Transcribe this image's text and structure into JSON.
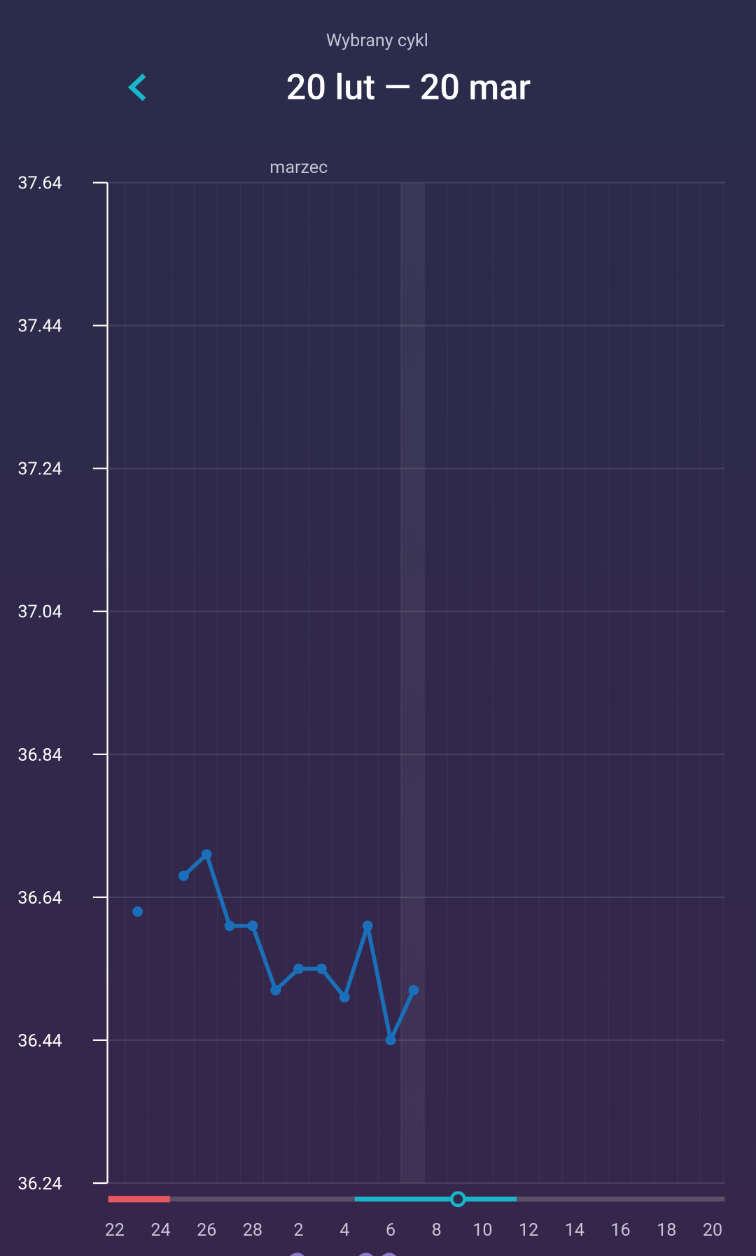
{
  "header": {
    "subtitle": "Wybrany cykl",
    "title": "20 lut — 20 mar"
  },
  "chart_data": {
    "type": "line",
    "month_label": "marzec",
    "color": "#1a6fb8",
    "categories": [
      "22",
      null,
      "24",
      null,
      "26",
      null,
      "28",
      null,
      "2",
      null,
      "4",
      null,
      "6",
      null,
      "8",
      null,
      "10",
      null,
      "12",
      null,
      "14",
      null,
      "16",
      null,
      "18",
      null,
      "20"
    ],
    "values": [
      null,
      36.62,
      null,
      36.67,
      36.7,
      36.6,
      36.6,
      36.51,
      36.54,
      36.54,
      36.5,
      36.6,
      36.44,
      36.51,
      null,
      null,
      null,
      null,
      null,
      null,
      null,
      null,
      null,
      null,
      null,
      null,
      null
    ],
    "ylim": [
      36.24,
      37.64
    ],
    "yticks": [
      36.24,
      36.44,
      36.64,
      36.84,
      37.04,
      37.24,
      37.44,
      37.64
    ],
    "grid": true
  }
}
